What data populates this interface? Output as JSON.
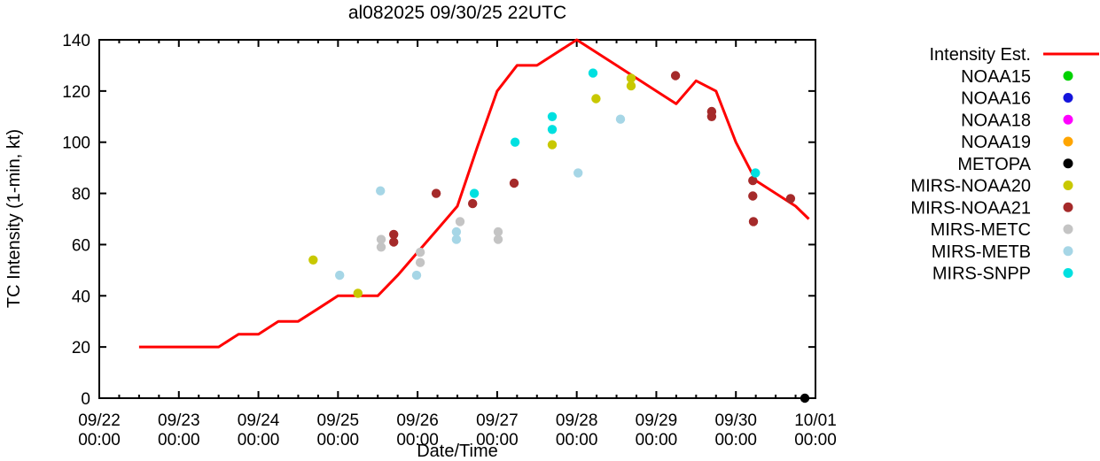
{
  "window": {
    "title": "al082025 09/30/25 22UTC"
  },
  "chart_data": {
    "type": "line",
    "title": "al082025 09/30/25 22UTC",
    "xlabel": "Date/Time",
    "ylabel": "TC Intensity (1-min, kt)",
    "ylim": [
      0,
      140
    ],
    "y_ticks": [
      0,
      20,
      40,
      60,
      80,
      100,
      120,
      140
    ],
    "x_unit": "hours since 09/22 00:00",
    "x_range_hours": [
      0,
      216
    ],
    "x_major_every_hours": 24,
    "x_minor_every_hours": 6,
    "grid": false,
    "legend_position": "right-outside",
    "x_tick_labels": [
      {
        "date": "09/22",
        "time": "00:00"
      },
      {
        "date": "09/23",
        "time": "00:00"
      },
      {
        "date": "09/24",
        "time": "00:00"
      },
      {
        "date": "09/25",
        "time": "00:00"
      },
      {
        "date": "09/26",
        "time": "00:00"
      },
      {
        "date": "09/27",
        "time": "00:00"
      },
      {
        "date": "09/28",
        "time": "00:00"
      },
      {
        "date": "09/29",
        "time": "00:00"
      },
      {
        "date": "09/30",
        "time": "00:00"
      },
      {
        "date": "10/01",
        "time": "00:00"
      }
    ],
    "line_series": [
      {
        "name": "Intensity Est.",
        "color": "#ff0000",
        "points": [
          [
            12,
            20
          ],
          [
            36,
            20
          ],
          [
            42,
            25
          ],
          [
            48,
            25
          ],
          [
            54,
            30
          ],
          [
            60,
            30
          ],
          [
            66,
            35
          ],
          [
            72,
            40
          ],
          [
            84,
            40
          ],
          [
            90,
            48
          ],
          [
            96,
            57
          ],
          [
            102,
            66
          ],
          [
            108,
            75
          ],
          [
            114,
            98
          ],
          [
            120,
            120
          ],
          [
            126,
            130
          ],
          [
            132,
            130
          ],
          [
            144,
            140
          ],
          [
            156,
            130
          ],
          [
            168,
            120
          ],
          [
            174,
            115
          ],
          [
            180,
            124
          ],
          [
            186,
            120
          ],
          [
            192,
            100
          ],
          [
            198,
            85
          ],
          [
            210,
            75
          ],
          [
            214,
            70
          ]
        ]
      }
    ],
    "scatter_series": [
      {
        "name": "NOAA15",
        "color": "#00d200",
        "points": []
      },
      {
        "name": "NOAA16",
        "color": "#1414dc",
        "points": []
      },
      {
        "name": "NOAA18",
        "color": "#ff00ff",
        "points": []
      },
      {
        "name": "NOAA19",
        "color": "#ffa500",
        "points": []
      },
      {
        "name": "METOPA",
        "color": "#000000",
        "points": [
          [
            212.8,
            0
          ]
        ]
      },
      {
        "name": "MIRS-NOAA20",
        "color": "#c8c800",
        "points": [
          [
            64.5,
            54
          ],
          [
            78,
            41
          ],
          [
            136.6,
            99
          ],
          [
            149.8,
            117
          ],
          [
            160.4,
            125
          ],
          [
            160.4,
            122
          ]
        ]
      },
      {
        "name": "MIRS-NOAA21",
        "color": "#a52a2a",
        "points": [
          [
            88.8,
            64
          ],
          [
            88.8,
            61
          ],
          [
            101.6,
            80
          ],
          [
            112.6,
            76
          ],
          [
            125.1,
            84
          ],
          [
            173.8,
            126
          ],
          [
            184.7,
            112
          ],
          [
            184.7,
            110
          ],
          [
            197.1,
            85
          ],
          [
            197.1,
            79
          ],
          [
            197.3,
            69
          ],
          [
            208.5,
            78
          ]
        ]
      },
      {
        "name": "MIRS-METC",
        "color": "#c4c4c4",
        "points": [
          [
            85,
            62
          ],
          [
            85,
            59
          ],
          [
            96.8,
            57
          ],
          [
            96.8,
            53
          ],
          [
            108.8,
            69
          ],
          [
            120.3,
            65
          ],
          [
            120.3,
            62
          ]
        ]
      },
      {
        "name": "MIRS-METB",
        "color": "#a6d6e6",
        "points": [
          [
            72.5,
            48
          ],
          [
            84.8,
            81
          ],
          [
            95.7,
            48
          ],
          [
            107.7,
            65
          ],
          [
            107.7,
            62
          ],
          [
            144.4,
            88
          ],
          [
            157.2,
            109
          ]
        ]
      },
      {
        "name": "MIRS-SNPP",
        "color": "#00e0e0",
        "points": [
          [
            113.1,
            80
          ],
          [
            125.4,
            100
          ],
          [
            136.6,
            110
          ],
          [
            136.6,
            105
          ],
          [
            148.9,
            127
          ],
          [
            197.9,
            88
          ]
        ]
      }
    ]
  }
}
